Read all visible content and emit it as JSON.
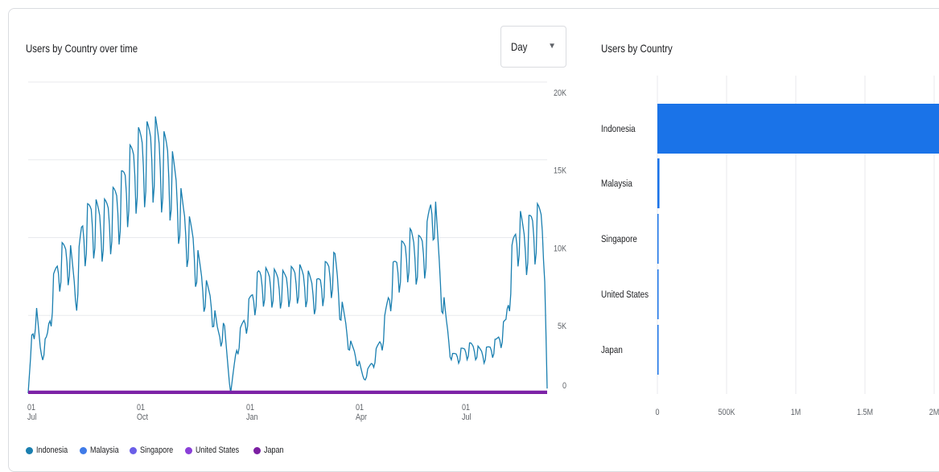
{
  "left_panel": {
    "title": "Users by Country over time",
    "interval_select": "Day"
  },
  "right_panel": {
    "title": "Users by Country"
  },
  "colors": {
    "Indonesia": "#1a73e8",
    "line": "#1a7fb0",
    "Malaysia": "#3f7be8",
    "Singapore": "#6a5ee8",
    "United States": "#8a3fd8",
    "Japan": "#7b1fa2",
    "grid": "#e8eaed"
  },
  "chart_data": [
    {
      "type": "line",
      "x_ticks": [
        "01\nJul",
        "01\nOct",
        "01\nJan",
        "01\nApr",
        "01\nJul"
      ],
      "y_ticks": [
        "0",
        "5K",
        "10K",
        "15K",
        "20K"
      ],
      "ylim": [
        0,
        20000
      ],
      "grid": true,
      "legend_position": "bottom-left",
      "series": [
        {
          "name": "Indonesia",
          "anchors": [
            [
              0,
              0
            ],
            [
              2,
              3000
            ],
            [
              5,
              4600
            ],
            [
              8,
              2200
            ],
            [
              12,
              3000
            ],
            [
              16,
              6000
            ],
            [
              20,
              7500
            ],
            [
              26,
              8000
            ],
            [
              30,
              5500
            ],
            [
              34,
              9000
            ],
            [
              40,
              10000
            ],
            [
              46,
              9600
            ],
            [
              52,
              10200
            ],
            [
              58,
              11000
            ],
            [
              64,
              12500
            ],
            [
              70,
              13500
            ],
            [
              76,
              13800
            ],
            [
              80,
              14100
            ],
            [
              84,
              13300
            ],
            [
              88,
              13200
            ],
            [
              94,
              11400
            ],
            [
              98,
              9800
            ],
            [
              104,
              8500
            ],
            [
              110,
              6200
            ],
            [
              116,
              5100
            ],
            [
              120,
              3300
            ],
            [
              124,
              3600
            ],
            [
              128,
              0
            ],
            [
              132,
              2700
            ],
            [
              138,
              4400
            ],
            [
              146,
              6400
            ],
            [
              154,
              6300
            ],
            [
              162,
              6200
            ],
            [
              170,
              6600
            ],
            [
              176,
              6300
            ],
            [
              182,
              5700
            ],
            [
              188,
              6700
            ],
            [
              194,
              7200
            ],
            [
              198,
              4800
            ],
            [
              204,
              2600
            ],
            [
              208,
              2000
            ],
            [
              212,
              800
            ],
            [
              218,
              1800
            ],
            [
              224,
              3200
            ],
            [
              230,
              6500
            ],
            [
              236,
              7700
            ],
            [
              242,
              8400
            ],
            [
              246,
              7900
            ],
            [
              252,
              8600
            ],
            [
              256,
              11300
            ],
            [
              260,
              7000
            ],
            [
              264,
              4000
            ],
            [
              268,
              2000
            ],
            [
              272,
              2200
            ],
            [
              280,
              2600
            ],
            [
              288,
              2200
            ],
            [
              296,
              2800
            ],
            [
              302,
              3900
            ],
            [
              306,
              7700
            ],
            [
              310,
              9500
            ],
            [
              314,
              8500
            ],
            [
              318,
              9300
            ],
            [
              322,
              9600
            ],
            [
              326,
              9800
            ],
            [
              328,
              300
            ]
          ],
          "weekly_amplitude": 0.45,
          "days": 429
        },
        {
          "name": "Malaysia",
          "approx_value": 100
        },
        {
          "name": "Singapore",
          "approx_value": 80
        },
        {
          "name": "United States",
          "approx_value": 40
        },
        {
          "name": "Japan",
          "approx_value": 20
        }
      ]
    },
    {
      "type": "bar",
      "orientation": "horizontal",
      "categories": [
        "Indonesia",
        "Malaysia",
        "Singapore",
        "United States",
        "Japan"
      ],
      "values": [
        2100000,
        15000,
        6000,
        3000,
        1500
      ],
      "x_ticks": [
        "0",
        "500K",
        "1M",
        "1.5M",
        "2M"
      ],
      "xlim": [
        0,
        2000000
      ],
      "grid": true
    }
  ],
  "legend": [
    "Indonesia",
    "Malaysia",
    "Singapore",
    "United States",
    "Japan"
  ]
}
